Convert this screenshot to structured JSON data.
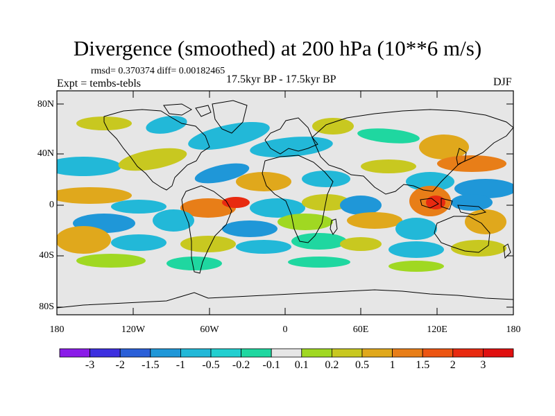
{
  "title": "Divergence (smoothed) at 200 hPa (10**6 m/s)",
  "subtitle": "rmsd= 0.370374 diff= 0.00182465",
  "experiment_label": "Expt = tembs-tebls",
  "center_label": "17.5kyr BP - 17.5kyr BP",
  "season_label": "DJF",
  "latitude_labels": [
    "80N",
    "40N",
    "0",
    "40S",
    "80S"
  ],
  "longitude_labels": [
    "180",
    "120W",
    "60W",
    "0",
    "60E",
    "120E",
    "180"
  ],
  "colorbar": {
    "labels": [
      "-3",
      "-2",
      "-1.5",
      "-1",
      "-0.5",
      "-0.2",
      "-0.1",
      "0.1",
      "0.2",
      "0.5",
      "1",
      "1.5",
      "2",
      "3"
    ],
    "colors": [
      "#8a1be8",
      "#3d2fe0",
      "#2a5fd8",
      "#1f97d8",
      "#22b8d8",
      "#22cfd0",
      "#1fd7a0",
      "#e6e6e6",
      "#a0d822",
      "#c8c820",
      "#e0a81c",
      "#e87e18",
      "#ec5512",
      "#e82a10",
      "#e01010"
    ]
  },
  "map_colors": {
    "background": "#e6e6e6",
    "neg_strong": "#1f97d8",
    "neg_mid": "#22b8d8",
    "neg_weak": "#1fd7a0",
    "pos_weak": "#a0d822",
    "pos_mid": "#c8c820",
    "pos_strong": "#e0a81c",
    "pos_stronger": "#e87e18",
    "pos_max": "#e82a10"
  }
}
